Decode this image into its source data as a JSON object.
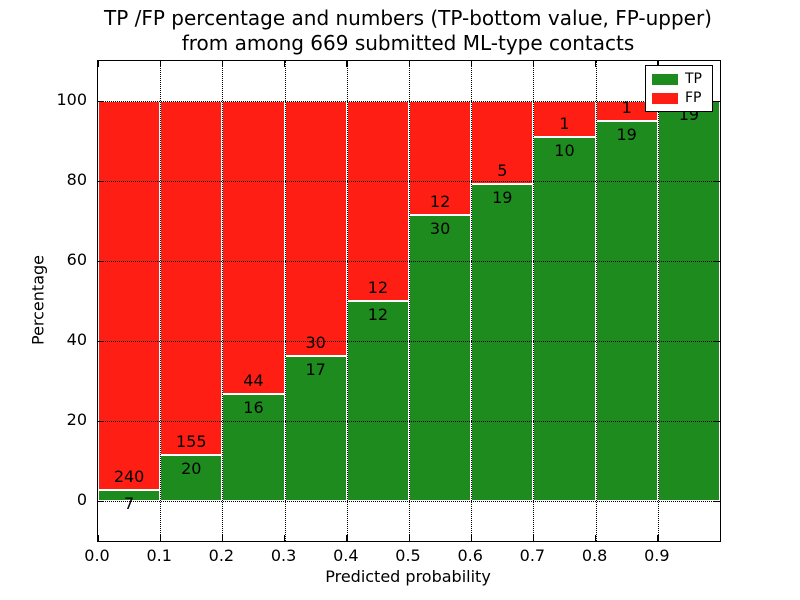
{
  "title": {
    "line1": "TP /FP percentage and numbers (TP-bottom value, FP-upper)",
    "line2": "from among 669 submitted ML-type contacts"
  },
  "chart_data": {
    "type": "bar",
    "stacked": true,
    "title": "TP /FP percentage and numbers (TP-bottom value, FP-upper) from among 669 submitted ML-type contacts",
    "xlabel": "Predicted probability",
    "ylabel": "Percentage",
    "x_tick_labels": [
      "0.0",
      "0.1",
      "0.2",
      "0.3",
      "0.4",
      "0.5",
      "0.6",
      "0.7",
      "0.8",
      "0.9"
    ],
    "y_tick_values": [
      0,
      20,
      40,
      60,
      80,
      100
    ],
    "xlim": [
      0.0,
      1.0
    ],
    "ylim": [
      -10,
      110
    ],
    "grid": "dotted both axes",
    "total_contacts": 669,
    "bar_value_convention": "TP count labeled below segment boundary, FP count labeled above it",
    "legend": {
      "position": "upper-right",
      "entries": [
        {
          "name": "TP",
          "label": "TP",
          "color": "#1e8b1e"
        },
        {
          "name": "FP",
          "label": "FP",
          "color": "#ff1e13"
        }
      ]
    },
    "bars": [
      {
        "range": [
          0.0,
          0.1
        ],
        "tp": 7,
        "fp": 240,
        "tp_pct": 2.83
      },
      {
        "range": [
          0.1,
          0.2
        ],
        "tp": 20,
        "fp": 155,
        "tp_pct": 11.43
      },
      {
        "range": [
          0.2,
          0.3
        ],
        "tp": 16,
        "fp": 44,
        "tp_pct": 26.67
      },
      {
        "range": [
          0.3,
          0.4
        ],
        "tp": 17,
        "fp": 30,
        "tp_pct": 36.17
      },
      {
        "range": [
          0.4,
          0.5
        ],
        "tp": 12,
        "fp": 12,
        "tp_pct": 50.0
      },
      {
        "range": [
          0.5,
          0.6
        ],
        "tp": 30,
        "fp": 12,
        "tp_pct": 71.43
      },
      {
        "range": [
          0.6,
          0.7
        ],
        "tp": 19,
        "fp": 5,
        "tp_pct": 79.17
      },
      {
        "range": [
          0.7,
          0.8
        ],
        "tp": 10,
        "fp": 1,
        "tp_pct": 90.91
      },
      {
        "range": [
          0.8,
          0.9
        ],
        "tp": 19,
        "fp": 1,
        "tp_pct": 95.0
      },
      {
        "range": [
          0.9,
          1.0
        ],
        "tp": 19,
        "fp": 0,
        "tp_pct": 100.0
      }
    ]
  },
  "colors": {
    "tp": "#1e8b1e",
    "fp": "#ff1e13",
    "axis": "#000000",
    "text": "#000000",
    "background": "#ffffff"
  }
}
